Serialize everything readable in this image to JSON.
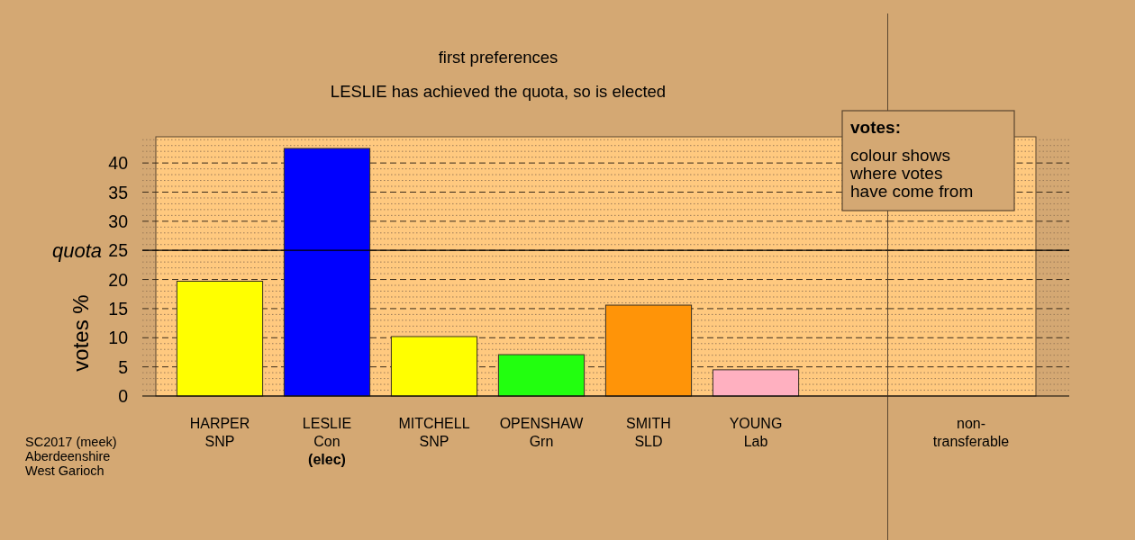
{
  "chart_data": [
    {
      "type": "bar",
      "title": "first preferences",
      "subtitle": "LESLIE has achieved the quota, so is elected",
      "ylabel": "votes %",
      "categories": [
        "HARPER\nSNP",
        "LESLIE\nCon\n(elec)",
        "MITCHELL\nSNP",
        "OPENSHAW\nGrn",
        "SMITH\nSLD",
        "YOUNG\nLab"
      ],
      "values": [
        19.7,
        42.5,
        10.2,
        7.1,
        15.6,
        4.5
      ],
      "colors": [
        "#ffff00",
        "#0000ff",
        "#ffff00",
        "#22ff0f",
        "#ff9408",
        "#ffb0c0"
      ],
      "ylim": [
        0,
        44.5
      ],
      "yticks": [
        0,
        {
          "value": 1,
          "label": null
        },
        {
          "value": 2,
          "label": null
        },
        {
          "value": 3,
          "label": null
        },
        {
          "value": 4,
          "label": null
        },
        5,
        {
          "value": 6,
          "label": null
        },
        {
          "value": 7,
          "label": null
        },
        {
          "value": 8,
          "label": null
        },
        {
          "value": 9,
          "label": null
        },
        10,
        {
          "value": 11,
          "label": null
        },
        {
          "value": 12,
          "label": null
        },
        {
          "value": 13,
          "label": null
        },
        {
          "value": 14,
          "label": null
        },
        15,
        {
          "value": 16,
          "label": null
        },
        {
          "value": 17,
          "label": null
        },
        {
          "value": 18,
          "label": null
        },
        {
          "value": 19,
          "label": null
        },
        20,
        {
          "value": 21,
          "label": null
        },
        {
          "value": 22,
          "label": null
        },
        {
          "value": 23,
          "label": null
        },
        {
          "value": 24,
          "label": null
        },
        25,
        {
          "value": 26,
          "label": null
        },
        {
          "value": 27,
          "label": null
        },
        {
          "value": 28,
          "label": null
        },
        {
          "value": 29,
          "label": null
        },
        30,
        {
          "value": 31,
          "label": null
        },
        {
          "value": 32,
          "label": null
        },
        {
          "value": 33,
          "label": null
        },
        {
          "value": 34,
          "label": null
        },
        35,
        {
          "value": 36,
          "label": null
        },
        {
          "value": 37,
          "label": null
        },
        {
          "value": 38,
          "label": null
        },
        {
          "value": 39,
          "label": null
        },
        40,
        {
          "value": 41,
          "label": null
        },
        {
          "value": 42,
          "label": null
        },
        {
          "value": 43,
          "label": null
        },
        {
          "value": 44,
          "label": null
        }
      ],
      "grid": "y",
      "ref_lines": [
        {
          "axis": "y",
          "value": 25,
          "label": "quota",
          "color": "#000000"
        }
      ],
      "annotations": [
        "votes:",
        "colour shows\nwhere votes\nhave come from",
        "SC2017 (meek)\nAberdeenshire\nWest Garioch"
      ]
    },
    {
      "type": "bar",
      "categories": [
        "non-\ntransferable"
      ],
      "values": [
        0
      ],
      "colors": [
        "#bebebe"
      ],
      "ylim": [
        0,
        44.5
      ],
      "yticks": [
        0,
        {
          "value": 1,
          "label": null
        },
        {
          "value": 2,
          "label": null
        },
        {
          "value": 3,
          "label": null
        },
        {
          "value": 4,
          "label": null
        },
        5,
        {
          "value": 6,
          "label": null
        },
        {
          "value": 7,
          "label": null
        },
        {
          "value": 8,
          "label": null
        },
        {
          "value": 9,
          "label": null
        },
        10,
        {
          "value": 11,
          "label": null
        },
        {
          "value": 12,
          "label": null
        },
        {
          "value": 13,
          "label": null
        },
        {
          "value": 14,
          "label": null
        },
        15,
        {
          "value": 16,
          "label": null
        },
        {
          "value": 17,
          "label": null
        },
        {
          "value": 18,
          "label": null
        },
        {
          "value": 19,
          "label": null
        },
        20,
        {
          "value": 21,
          "label": null
        },
        {
          "value": 22,
          "label": null
        },
        {
          "value": 23,
          "label": null
        },
        {
          "value": 24,
          "label": null
        },
        25,
        {
          "value": 26,
          "label": null
        },
        {
          "value": 27,
          "label": null
        },
        {
          "value": 28,
          "label": null
        },
        {
          "value": 29,
          "label": null
        },
        30,
        {
          "value": 31,
          "label": null
        },
        {
          "value": 32,
          "label": null
        },
        {
          "value": 33,
          "label": null
        },
        {
          "value": 34,
          "label": null
        },
        35,
        {
          "value": 36,
          "label": null
        },
        {
          "value": 37,
          "label": null
        },
        {
          "value": 38,
          "label": null
        },
        {
          "value": 39,
          "label": null
        },
        40,
        {
          "value": 41,
          "label": null
        },
        {
          "value": 42,
          "label": null
        },
        {
          "value": 43,
          "label": null
        },
        {
          "value": 44,
          "label": null
        }
      ],
      "grid": "y",
      "tick_labels": "x",
      "ref_lines": [
        {
          "axis": "y",
          "value": 25,
          "color": "#000000"
        }
      ]
    }
  ]
}
